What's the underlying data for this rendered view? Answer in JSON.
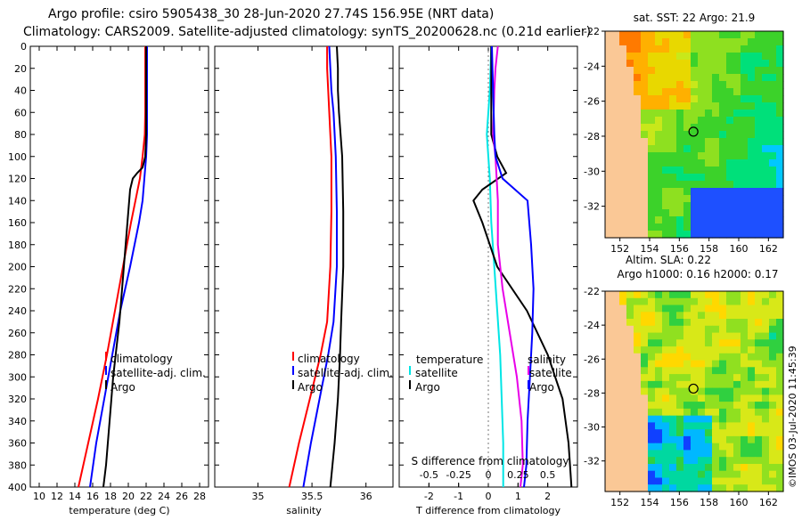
{
  "header": {
    "line1": "Argo profile: csiro 5905438_30 28-Jun-2020 27.74S 156.95E (NRT data)",
    "line2": "Climatology: CARS2009. Satellite-adjusted climatology: synTS_20200628.nc (0.21d earlier)"
  },
  "colors": {
    "climatology": "#ff0000",
    "satellite": "#0000ff",
    "argo": "#000000",
    "temp_diff": "#00e5e5",
    "sal_diff": "#e800e8"
  },
  "chart_data": [
    {
      "type": "line",
      "id": "temperature",
      "xlabel": "temperature (deg C)",
      "ylabel": "",
      "xlim": [
        9,
        29
      ],
      "ylim": [
        400,
        0
      ],
      "xticks": [
        10,
        12,
        14,
        16,
        18,
        20,
        22,
        24,
        26,
        28
      ],
      "yticks": [
        0,
        20,
        40,
        60,
        80,
        100,
        120,
        140,
        160,
        180,
        200,
        220,
        240,
        260,
        280,
        300,
        320,
        340,
        360,
        380,
        400
      ],
      "legend": [
        "climatology",
        "satellite-adj. clim.",
        "Argo"
      ],
      "series": [
        {
          "name": "climatology",
          "color": "#ff0000",
          "depth": [
            0,
            40,
            60,
            80,
            100,
            120,
            140,
            160,
            200,
            240,
            280,
            320,
            360,
            400
          ],
          "values": [
            21.9,
            21.9,
            21.9,
            21.85,
            21.6,
            21.3,
            20.8,
            20.3,
            19.4,
            18.5,
            17.6,
            16.6,
            15.5,
            14.4
          ]
        },
        {
          "name": "satellite-adj. clim.",
          "color": "#0000ff",
          "depth": [
            0,
            40,
            60,
            80,
            100,
            120,
            140,
            160,
            200,
            240,
            280,
            320,
            360,
            400
          ],
          "values": [
            22.1,
            22.1,
            22.1,
            22.1,
            22.0,
            21.8,
            21.6,
            21.2,
            20.2,
            19.1,
            18.2,
            17.3,
            16.4,
            15.7
          ]
        },
        {
          "name": "Argo",
          "color": "#000000",
          "depth": [
            0,
            40,
            80,
            100,
            110,
            115,
            120,
            130,
            150,
            200,
            250,
            300,
            340,
            380,
            400
          ],
          "values": [
            22.0,
            22.0,
            22.0,
            21.9,
            21.6,
            21.0,
            20.5,
            20.2,
            20.0,
            19.5,
            19.0,
            18.3,
            17.9,
            17.5,
            17.2
          ]
        }
      ]
    },
    {
      "type": "line",
      "id": "salinity",
      "xlabel": "salinity",
      "xlim": [
        34.6,
        36.25
      ],
      "ylim": [
        400,
        0
      ],
      "xticks": [
        35,
        35.5,
        36
      ],
      "legend": [
        "climatology",
        "satellite-adj. clim.",
        "Argo"
      ],
      "series": [
        {
          "name": "climatology",
          "color": "#ff0000",
          "depth": [
            0,
            20,
            40,
            60,
            100,
            150,
            200,
            250,
            280,
            320,
            360,
            400
          ],
          "values": [
            35.64,
            35.64,
            35.65,
            35.66,
            35.68,
            35.68,
            35.67,
            35.64,
            35.58,
            35.48,
            35.38,
            35.29
          ]
        },
        {
          "name": "satellite-adj. clim.",
          "color": "#0000ff",
          "depth": [
            0,
            20,
            40,
            60,
            100,
            150,
            200,
            250,
            280,
            320,
            360,
            400
          ],
          "values": [
            35.66,
            35.67,
            35.68,
            35.7,
            35.72,
            35.73,
            35.73,
            35.7,
            35.65,
            35.57,
            35.49,
            35.42
          ]
        },
        {
          "name": "Argo",
          "color": "#000000",
          "depth": [
            0,
            20,
            40,
            60,
            100,
            150,
            200,
            250,
            280,
            320,
            360,
            400
          ],
          "values": [
            35.73,
            35.74,
            35.74,
            35.75,
            35.78,
            35.79,
            35.79,
            35.77,
            35.76,
            35.74,
            35.71,
            35.67
          ]
        }
      ]
    },
    {
      "type": "line",
      "id": "differences",
      "xlabel": "T difference from climatology",
      "xlabel_top": "S difference from climatology",
      "xlim": [
        -3,
        3
      ],
      "ylim": [
        400,
        0
      ],
      "xticks": [
        -2,
        -1,
        0,
        1,
        2
      ],
      "xticks_top": [
        -0.5,
        -0.25,
        0,
        0.25,
        0.5
      ],
      "legend_left": {
        "title": "temperature",
        "items": [
          "satellite",
          "Argo"
        ]
      },
      "legend_right": {
        "title": "salinity",
        "items": [
          "satellite",
          "Argo"
        ]
      },
      "series": [
        {
          "name": "temperature satellite",
          "color": "#00e5e5",
          "depth": [
            0,
            40,
            80,
            120,
            160,
            200,
            240,
            280,
            320,
            360,
            400
          ],
          "values": [
            0.1,
            0.05,
            -0.05,
            0.05,
            0.1,
            0.2,
            0.3,
            0.4,
            0.45,
            0.5,
            0.5
          ]
        },
        {
          "name": "temperature Argo",
          "color": "#000000",
          "depth": [
            0,
            40,
            80,
            100,
            115,
            130,
            140,
            160,
            200,
            240,
            280,
            320,
            360,
            400
          ],
          "values": [
            0.1,
            0.1,
            0.1,
            0.3,
            0.6,
            -0.2,
            -0.5,
            -0.2,
            0.3,
            1.3,
            2.0,
            2.5,
            2.7,
            2.8
          ]
        },
        {
          "name": "salinity satellite",
          "color": "#e800e8",
          "depth": [
            0,
            20,
            40,
            80,
            100,
            140,
            180,
            220,
            260,
            300,
            340,
            380,
            400
          ],
          "values": [
            0.08,
            0.06,
            0.05,
            0.04,
            0.06,
            0.08,
            0.08,
            0.12,
            0.18,
            0.24,
            0.28,
            0.29,
            0.27
          ]
        },
        {
          "name": "salinity Argo",
          "color": "#0000ff",
          "depth": [
            0,
            40,
            80,
            100,
            120,
            140,
            180,
            220,
            260,
            300,
            340,
            380,
            400
          ],
          "values": [
            0.03,
            0.04,
            0.05,
            0.06,
            0.12,
            0.33,
            0.36,
            0.38,
            0.37,
            0.35,
            0.33,
            0.32,
            0.3
          ]
        }
      ]
    },
    {
      "type": "heatmap",
      "id": "sst_map",
      "title": "sat. SST: 22 Argo: 21.9",
      "xticks": [
        152,
        154,
        156,
        158,
        160,
        162
      ],
      "yticks": [
        -22,
        -24,
        -26,
        -28,
        -30,
        -32
      ],
      "xlim": [
        151,
        163
      ],
      "ylim": [
        -33.8,
        -22
      ],
      "argo_lon": 156.95,
      "argo_lat": -27.74
    },
    {
      "type": "heatmap",
      "id": "sla_map",
      "title": "Altim. SLA: 0.22",
      "subtitle": "Argo h1000: 0.16 h2000: 0.17",
      "xticks": [
        152,
        154,
        156,
        158,
        160,
        162
      ],
      "yticks": [
        -22,
        -24,
        -26,
        -28,
        -30,
        -32
      ],
      "xlim": [
        151,
        163
      ],
      "ylim": [
        -33.8,
        -22
      ],
      "argo_lon": 156.95,
      "argo_lat": -27.74
    }
  ],
  "credit": "©IMOS 03-Jul-2020 11:45:39"
}
